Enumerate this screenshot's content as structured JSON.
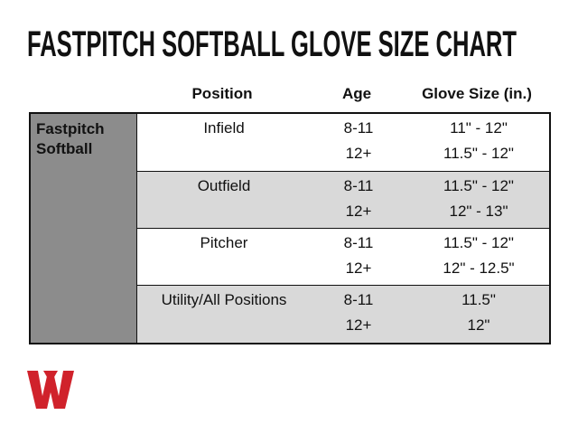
{
  "title": "FASTPITCH SOFTBALL GLOVE SIZE CHART",
  "header": {
    "position": "Position",
    "age": "Age",
    "glove_size": "Glove Size (in.)"
  },
  "sport": "Fastpitch Softball",
  "groups": [
    {
      "position": "Infield",
      "rows": [
        {
          "age": "8-11",
          "size": "11\" - 12\""
        },
        {
          "age": "12+",
          "size": "11.5\" - 12\""
        }
      ]
    },
    {
      "position": "Outfield",
      "rows": [
        {
          "age": "8-11",
          "size": "11.5\" - 12\""
        },
        {
          "age": "12+",
          "size": "12\" - 13\""
        }
      ]
    },
    {
      "position": "Pitcher",
      "rows": [
        {
          "age": "8-11",
          "size": "11.5\" - 12\""
        },
        {
          "age": "12+",
          "size": "12\" - 12.5\""
        }
      ]
    },
    {
      "position": "Utility/All Positions",
      "rows": [
        {
          "age": "8-11",
          "size": "11.5\""
        },
        {
          "age": "12+",
          "size": "12\""
        }
      ]
    }
  ]
}
